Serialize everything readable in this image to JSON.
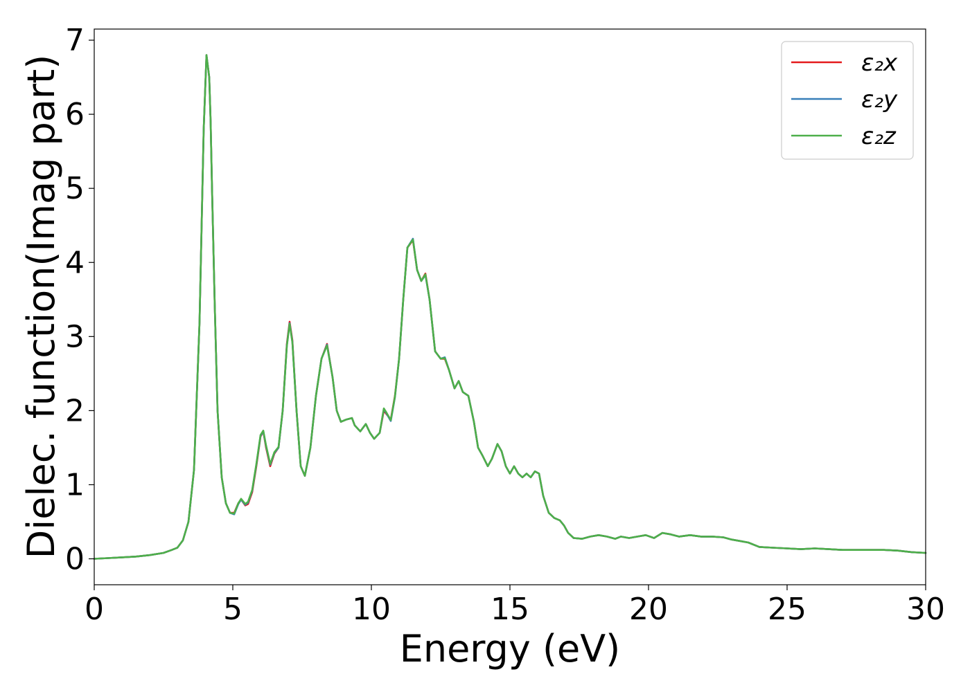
{
  "chart_data": {
    "type": "line",
    "xlabel": "Energy (eV)",
    "ylabel": "Dielec. function(Imag part)",
    "xlim": [
      0,
      30
    ],
    "ylim": [
      -0.35,
      7.15
    ],
    "xticks": [
      0,
      5,
      10,
      15,
      20,
      25,
      30
    ],
    "yticks": [
      0,
      1,
      2,
      3,
      4,
      5,
      6,
      7
    ],
    "grid": false,
    "legend_position": "top-right",
    "series": [
      {
        "name": "ε₂x",
        "color": "#e41a1c"
      },
      {
        "name": "ε₂y",
        "color": "#377eb8"
      },
      {
        "name": "ε₂z",
        "color": "#4daf4a"
      }
    ],
    "x": [
      0,
      0.5,
      1,
      1.5,
      2,
      2.5,
      2.8,
      3,
      3.2,
      3.4,
      3.6,
      3.8,
      3.95,
      4.05,
      4.15,
      4.2,
      4.25,
      4.35,
      4.45,
      4.6,
      4.75,
      4.9,
      5.05,
      5.2,
      5.3,
      5.45,
      5.55,
      5.7,
      5.85,
      6,
      6.1,
      6.2,
      6.35,
      6.5,
      6.65,
      6.8,
      6.95,
      7.05,
      7.15,
      7.3,
      7.45,
      7.6,
      7.8,
      8,
      8.2,
      8.4,
      8.6,
      8.75,
      8.9,
      9.1,
      9.3,
      9.4,
      9.6,
      9.8,
      9.95,
      10.1,
      10.3,
      10.45,
      10.55,
      10.7,
      10.85,
      11,
      11.15,
      11.3,
      11.5,
      11.65,
      11.8,
      11.95,
      12.1,
      12.3,
      12.5,
      12.65,
      12.8,
      13,
      13.15,
      13.3,
      13.5,
      13.7,
      13.85,
      14,
      14.2,
      14.35,
      14.55,
      14.7,
      14.85,
      15,
      15.15,
      15.3,
      15.45,
      15.6,
      15.75,
      15.9,
      16.05,
      16.2,
      16.4,
      16.6,
      16.8,
      16.95,
      17.1,
      17.3,
      17.6,
      17.9,
      18.2,
      18.5,
      18.8,
      19,
      19.3,
      19.6,
      19.9,
      20.2,
      20.5,
      20.8,
      21.1,
      21.5,
      21.9,
      22.3,
      22.7,
      23,
      23.3,
      23.6,
      24,
      24.5,
      25,
      25.5,
      26,
      26.5,
      27,
      27.5,
      28,
      28.5,
      29,
      29.5,
      30
    ],
    "values_x": [
      0,
      0.01,
      0.02,
      0.03,
      0.05,
      0.08,
      0.12,
      0.15,
      0.25,
      0.5,
      1.2,
      3.2,
      5.8,
      6.8,
      6.5,
      5.9,
      5.0,
      3.4,
      2.0,
      1.1,
      0.75,
      0.62,
      0.62,
      0.75,
      0.8,
      0.72,
      0.74,
      0.9,
      1.25,
      1.65,
      1.72,
      1.5,
      1.25,
      1.42,
      1.5,
      2.0,
      2.9,
      3.2,
      2.95,
      2.0,
      1.25,
      1.12,
      1.5,
      2.2,
      2.7,
      2.9,
      2.45,
      2.0,
      1.85,
      1.88,
      1.9,
      1.8,
      1.72,
      1.82,
      1.7,
      1.62,
      1.7,
      2.0,
      1.95,
      1.88,
      2.2,
      2.7,
      3.5,
      4.2,
      4.3,
      3.9,
      3.75,
      3.85,
      3.5,
      2.8,
      2.7,
      2.7,
      2.55,
      2.3,
      2.4,
      2.25,
      2.2,
      1.85,
      1.5,
      1.4,
      1.25,
      1.35,
      1.55,
      1.45,
      1.25,
      1.15,
      1.25,
      1.15,
      1.1,
      1.15,
      1.1,
      1.18,
      1.15,
      0.85,
      0.62,
      0.55,
      0.52,
      0.45,
      0.35,
      0.28,
      0.27,
      0.3,
      0.32,
      0.3,
      0.27,
      0.3,
      0.28,
      0.3,
      0.32,
      0.28,
      0.35,
      0.33,
      0.3,
      0.32,
      0.3,
      0.3,
      0.29,
      0.26,
      0.24,
      0.22,
      0.16,
      0.15,
      0.14,
      0.13,
      0.14,
      0.13,
      0.12,
      0.12,
      0.12,
      0.12,
      0.11,
      0.09,
      0.08
    ],
    "values_y": [
      0,
      0.01,
      0.02,
      0.03,
      0.05,
      0.08,
      0.12,
      0.15,
      0.25,
      0.5,
      1.2,
      3.2,
      5.8,
      6.8,
      6.5,
      5.9,
      5.0,
      3.4,
      2.0,
      1.1,
      0.75,
      0.62,
      0.6,
      0.74,
      0.8,
      0.73,
      0.76,
      0.92,
      1.27,
      1.66,
      1.72,
      1.52,
      1.27,
      1.43,
      1.5,
      2.0,
      2.88,
      3.18,
      2.93,
      2.0,
      1.25,
      1.12,
      1.5,
      2.2,
      2.7,
      2.89,
      2.45,
      2.0,
      1.85,
      1.88,
      1.9,
      1.8,
      1.72,
      1.82,
      1.7,
      1.62,
      1.7,
      2.02,
      1.96,
      1.86,
      2.18,
      2.7,
      3.5,
      4.2,
      4.32,
      3.9,
      3.75,
      3.83,
      3.5,
      2.8,
      2.7,
      2.72,
      2.55,
      2.3,
      2.4,
      2.25,
      2.2,
      1.85,
      1.5,
      1.4,
      1.25,
      1.35,
      1.55,
      1.45,
      1.25,
      1.15,
      1.25,
      1.15,
      1.1,
      1.15,
      1.1,
      1.18,
      1.15,
      0.85,
      0.62,
      0.55,
      0.52,
      0.45,
      0.35,
      0.28,
      0.27,
      0.3,
      0.32,
      0.3,
      0.27,
      0.3,
      0.28,
      0.3,
      0.32,
      0.28,
      0.35,
      0.33,
      0.3,
      0.32,
      0.3,
      0.3,
      0.29,
      0.26,
      0.24,
      0.22,
      0.16,
      0.15,
      0.14,
      0.13,
      0.14,
      0.13,
      0.12,
      0.12,
      0.12,
      0.12,
      0.11,
      0.09,
      0.08
    ],
    "values_z": [
      0,
      0.01,
      0.02,
      0.03,
      0.05,
      0.08,
      0.12,
      0.15,
      0.25,
      0.5,
      1.2,
      3.2,
      5.8,
      6.8,
      6.5,
      5.9,
      5.0,
      3.4,
      2.0,
      1.1,
      0.75,
      0.62,
      0.61,
      0.75,
      0.81,
      0.74,
      0.77,
      0.93,
      1.28,
      1.67,
      1.73,
      1.53,
      1.28,
      1.44,
      1.51,
      2.0,
      2.87,
      3.17,
      2.92,
      2.0,
      1.25,
      1.12,
      1.5,
      2.2,
      2.7,
      2.88,
      2.45,
      2.0,
      1.85,
      1.88,
      1.9,
      1.8,
      1.72,
      1.82,
      1.7,
      1.62,
      1.7,
      2.03,
      1.97,
      1.87,
      2.19,
      2.7,
      3.5,
      4.2,
      4.31,
      3.9,
      3.75,
      3.84,
      3.5,
      2.8,
      2.7,
      2.71,
      2.55,
      2.3,
      2.4,
      2.25,
      2.2,
      1.85,
      1.5,
      1.4,
      1.25,
      1.35,
      1.55,
      1.45,
      1.25,
      1.15,
      1.25,
      1.15,
      1.1,
      1.15,
      1.1,
      1.18,
      1.15,
      0.85,
      0.62,
      0.55,
      0.52,
      0.45,
      0.35,
      0.28,
      0.27,
      0.3,
      0.32,
      0.3,
      0.27,
      0.3,
      0.28,
      0.3,
      0.32,
      0.28,
      0.35,
      0.33,
      0.3,
      0.32,
      0.3,
      0.3,
      0.29,
      0.26,
      0.24,
      0.22,
      0.16,
      0.15,
      0.14,
      0.13,
      0.14,
      0.13,
      0.12,
      0.12,
      0.12,
      0.12,
      0.11,
      0.09,
      0.08
    ]
  }
}
